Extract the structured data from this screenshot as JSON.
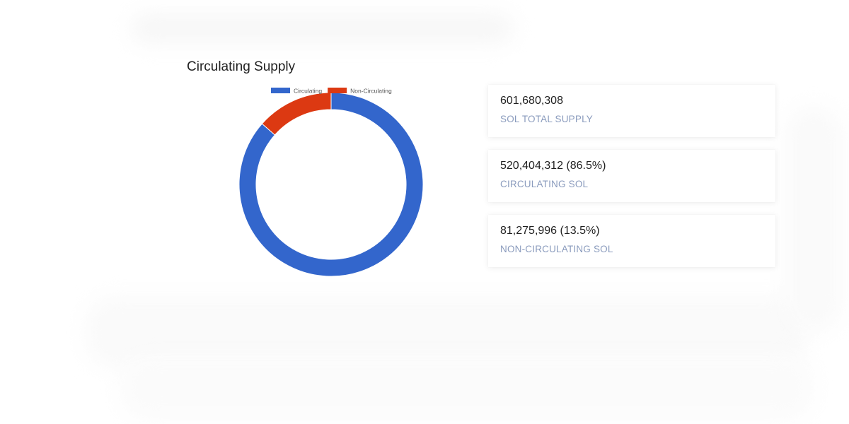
{
  "chart_data": {
    "type": "pie",
    "variant": "donut",
    "title": "Circulating Supply",
    "legend_position": "top",
    "series": [
      {
        "name": "Circulating",
        "value": 520404312,
        "color": "#3366cc"
      },
      {
        "name": "Non-Circulating",
        "value": 81275996,
        "color": "#dc3912"
      }
    ]
  },
  "stats": [
    {
      "value": "601,680,308",
      "label": "SOL TOTAL SUPPLY"
    },
    {
      "value": "520,404,312 (86.5%)",
      "label": "CIRCULATING SOL"
    },
    {
      "value": "81,275,996 (13.5%)",
      "label": "NON-CIRCULATING SOL"
    }
  ]
}
